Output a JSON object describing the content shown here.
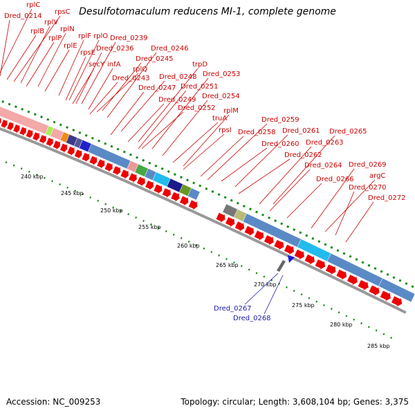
{
  "title": "Desulfotomaculum reducens MI-1, complete genome",
  "footer": {
    "accession": "Accession: NC_009253",
    "topology": "Topology: circular; Length: 3,608,104 bp; Genes: 3,375"
  },
  "colors": {
    "label_red": "#cc0000",
    "label_blue": "#1a1aaa",
    "arrow_red": "#ee0000",
    "backbone": "#999999",
    "dots_green": "#138a13",
    "cog_band_gray": "#aaaaaa"
  },
  "tick_labels": [
    "240 kbp",
    "245 kbp",
    "250 kbp",
    "255 kbp",
    "260 kbp",
    "265 kbp",
    "270 kbp",
    "275 kbp",
    "280 kbp",
    "285 kbp"
  ],
  "gene_labels": [
    {
      "text": "rplC",
      "color": "red"
    },
    {
      "text": "Dred_0214",
      "color": "red"
    },
    {
      "text": "rpsC",
      "color": "red"
    },
    {
      "text": "rplV",
      "color": "red"
    },
    {
      "text": "rplB",
      "color": "red"
    },
    {
      "text": "rplN",
      "color": "red"
    },
    {
      "text": "rplP",
      "color": "red"
    },
    {
      "text": "rplE",
      "color": "red"
    },
    {
      "text": "rplF",
      "color": "red"
    },
    {
      "text": "rplO",
      "color": "red"
    },
    {
      "text": "Dred_0239",
      "color": "red"
    },
    {
      "text": "rpsE",
      "color": "red"
    },
    {
      "text": "Dred_0236",
      "color": "red"
    },
    {
      "text": "Dred_0246",
      "color": "red"
    },
    {
      "text": "secY",
      "color": "red"
    },
    {
      "text": "infA",
      "color": "red"
    },
    {
      "text": "Dred_0245",
      "color": "red"
    },
    {
      "text": "trpD",
      "color": "red"
    },
    {
      "text": "rplQ",
      "color": "red"
    },
    {
      "text": "Dred_0248",
      "color": "red"
    },
    {
      "text": "Dred_0253",
      "color": "red"
    },
    {
      "text": "Dred_0243",
      "color": "red"
    },
    {
      "text": "Dred_0251",
      "color": "red"
    },
    {
      "text": "Dred_0247",
      "color": "red"
    },
    {
      "text": "Dred_0254",
      "color": "red"
    },
    {
      "text": "Dred_0249",
      "color": "red"
    },
    {
      "text": "rplM",
      "color": "red"
    },
    {
      "text": "Dred_0252",
      "color": "red"
    },
    {
      "text": "truA",
      "color": "red"
    },
    {
      "text": "Dred_0259",
      "color": "red"
    },
    {
      "text": "rpsI",
      "color": "red"
    },
    {
      "text": "Dred_0258",
      "color": "red"
    },
    {
      "text": "Dred_0261",
      "color": "red"
    },
    {
      "text": "Dred_0265",
      "color": "red"
    },
    {
      "text": "Dred_0260",
      "color": "red"
    },
    {
      "text": "Dred_0263",
      "color": "red"
    },
    {
      "text": "Dred_0262",
      "color": "red"
    },
    {
      "text": "Dred_0264",
      "color": "red"
    },
    {
      "text": "Dred_0269",
      "color": "red"
    },
    {
      "text": "argC",
      "color": "red"
    },
    {
      "text": "Dred_0266",
      "color": "red"
    },
    {
      "text": "Dred_0270",
      "color": "red"
    },
    {
      "text": "Dred_0272",
      "color": "red"
    },
    {
      "text": "Dred_0267",
      "color": "blue"
    },
    {
      "text": "Dred_0268",
      "color": "blue"
    }
  ]
}
